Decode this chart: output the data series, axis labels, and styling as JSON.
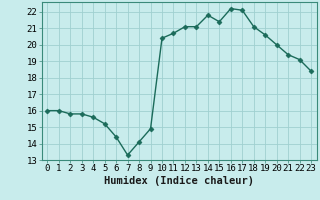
{
  "x": [
    0,
    1,
    2,
    3,
    4,
    5,
    6,
    7,
    8,
    9,
    10,
    11,
    12,
    13,
    14,
    15,
    16,
    17,
    18,
    19,
    20,
    21,
    22,
    23
  ],
  "y": [
    16.0,
    16.0,
    15.8,
    15.8,
    15.6,
    15.2,
    14.4,
    13.3,
    14.1,
    14.9,
    20.4,
    20.7,
    21.1,
    21.1,
    21.8,
    21.4,
    22.2,
    22.1,
    21.1,
    20.6,
    20.0,
    19.4,
    19.1,
    18.4
  ],
  "line_color": "#1b6b5a",
  "marker": "D",
  "marker_size": 2.5,
  "bg_color": "#c8ecec",
  "grid_color": "#a0d0d0",
  "xlabel": "Humidex (Indice chaleur)",
  "ylabel_ticks": [
    13,
    14,
    15,
    16,
    17,
    18,
    19,
    20,
    21,
    22
  ],
  "xlim": [
    -0.5,
    23.5
  ],
  "ylim": [
    13,
    22.6
  ],
  "xlabel_fontsize": 7.5,
  "tick_fontsize": 6.5,
  "linewidth": 1.0
}
